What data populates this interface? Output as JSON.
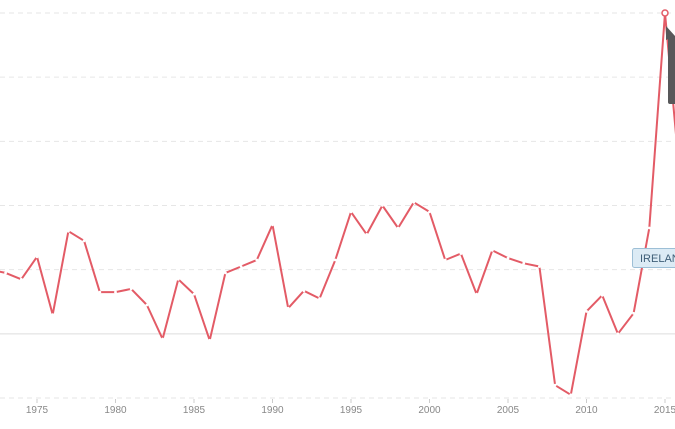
{
  "chart_data": {
    "type": "line",
    "title": "",
    "xlabel": "",
    "ylabel": "",
    "x_ticks": [
      "1975",
      "1980",
      "1985",
      "1990",
      "1995",
      "2000",
      "2005",
      "2010",
      "2015"
    ],
    "xlim": [
      1972,
      2015.5
    ],
    "ylim": [
      -1.0,
      5.6
    ],
    "grid": true,
    "series": [
      {
        "name": "IRELAND",
        "color": "#e35b66",
        "x": [
          1972,
          1973,
          1974,
          1975,
          1976,
          1977,
          1978,
          1979,
          1980,
          1981,
          1982,
          1983,
          1984,
          1985,
          1986,
          1987,
          1988,
          1989,
          1990,
          1991,
          1992,
          1993,
          1994,
          1995,
          1996,
          1997,
          1998,
          1999,
          2000,
          2001,
          2002,
          2003,
          2004,
          2005,
          2006,
          2007,
          2008,
          2009,
          2010,
          2011,
          2012,
          2013,
          2014,
          2015,
          2016
        ],
        "y": [
          1.0,
          0.95,
          0.85,
          1.2,
          0.3,
          1.6,
          1.45,
          0.65,
          0.65,
          0.7,
          0.45,
          -0.08,
          0.85,
          0.62,
          -0.1,
          0.95,
          1.05,
          1.15,
          1.7,
          0.4,
          0.67,
          0.55,
          1.15,
          1.9,
          1.55,
          2.0,
          1.65,
          2.05,
          1.9,
          1.15,
          1.25,
          0.62,
          1.3,
          1.18,
          1.1,
          1.05,
          -0.8,
          -0.95,
          0.35,
          0.6,
          0.0,
          0.32,
          1.65,
          5.0,
          2.3
        ]
      }
    ],
    "end_marker_label": "IRELAND",
    "peak_tooltip_color": "#58585a"
  }
}
